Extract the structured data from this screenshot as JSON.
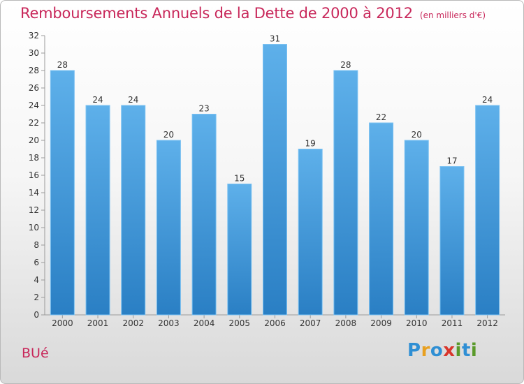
{
  "header": {
    "title": "Remboursements Annuels de la Dette de 2000 à 2012",
    "subtitle": "(en milliers d'€)"
  },
  "footer": {
    "commune": "BUé",
    "logo_letters": [
      {
        "char": "P",
        "color": "#2f8fd4"
      },
      {
        "char": "r",
        "color": "#e8a020"
      },
      {
        "char": "o",
        "color": "#2f8fd4"
      },
      {
        "char": "x",
        "color": "#d9352b"
      },
      {
        "char": "i",
        "color": "#5a9a2a"
      },
      {
        "char": "t",
        "color": "#2f8fd4"
      },
      {
        "char": "i",
        "color": "#5a9a2a"
      }
    ]
  },
  "colors": {
    "accent": "#c8275a",
    "bar_top": "#5eb0ea",
    "bar_bottom": "#2a7fc4"
  },
  "chart_data": {
    "type": "bar",
    "title": "Remboursements Annuels de la Dette de 2000 à 2012",
    "subtitle": "(en milliers d'€)",
    "xlabel": "",
    "ylabel": "",
    "categories": [
      "2000",
      "2001",
      "2002",
      "2003",
      "2004",
      "2005",
      "2006",
      "2007",
      "2008",
      "2009",
      "2010",
      "2011",
      "2012"
    ],
    "values": [
      28,
      24,
      24,
      20,
      23,
      15,
      31,
      19,
      28,
      22,
      20,
      17,
      24
    ],
    "ylim": [
      0,
      32
    ],
    "yticks": [
      0,
      2,
      4,
      6,
      8,
      10,
      12,
      14,
      16,
      18,
      20,
      22,
      24,
      26,
      28,
      30,
      32
    ],
    "grid": false,
    "legend": "none",
    "data_labels": true
  }
}
